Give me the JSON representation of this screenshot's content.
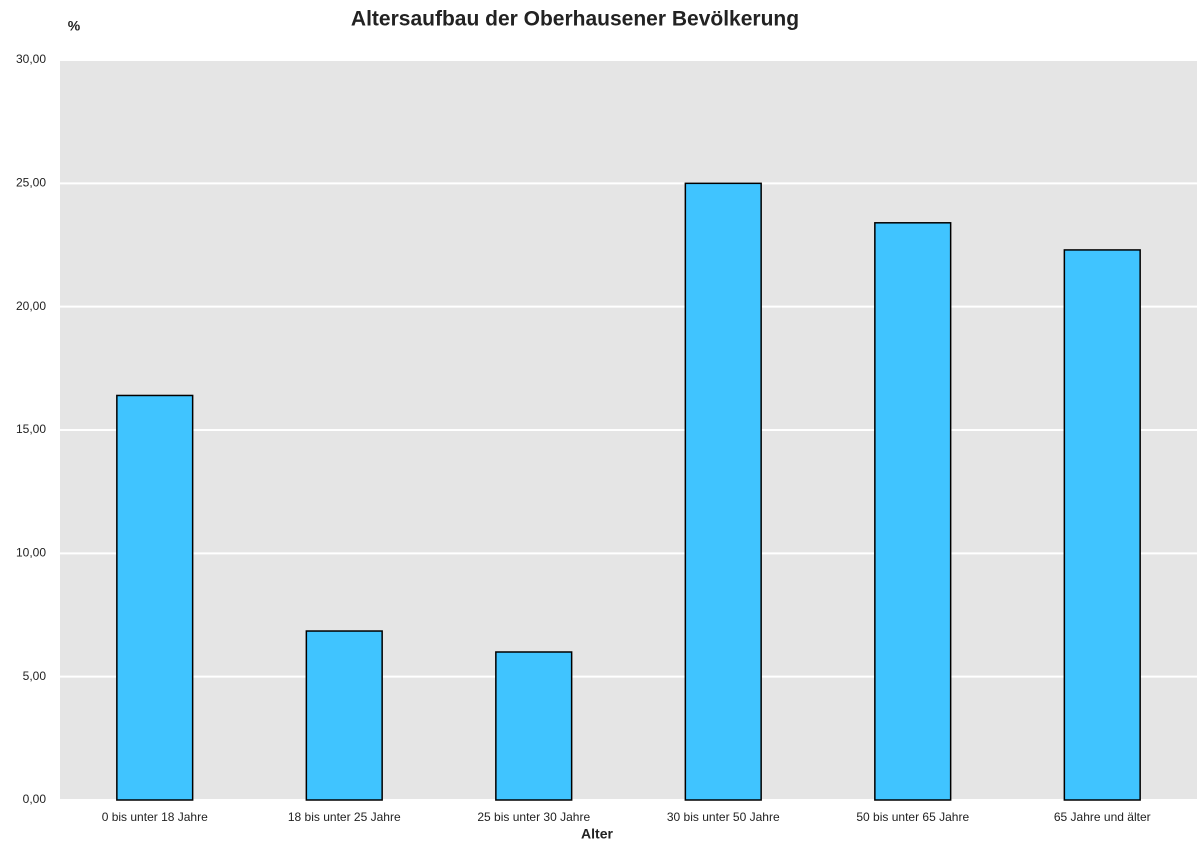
{
  "chart_data": {
    "type": "bar",
    "title": "Altersaufbau der Oberhausener Bevölkerung",
    "y_label": "%",
    "x_label": "Alter",
    "categories": [
      "0 bis unter 18 Jahre",
      "18 bis unter 25 Jahre",
      "25 bis unter 30 Jahre",
      "30 bis unter 50 Jahre",
      "50 bis unter 65 Jahre",
      "65 Jahre und älter"
    ],
    "values": [
      16.4,
      6.85,
      6.0,
      25.0,
      23.4,
      22.3
    ],
    "color": "#40c4ff",
    "ylim": [
      0,
      30
    ],
    "yticks": [
      {
        "value": 0,
        "label": "0,00"
      },
      {
        "value": 5,
        "label": "5,00"
      },
      {
        "value": 10,
        "label": "10,00"
      },
      {
        "value": 15,
        "label": "15,00"
      },
      {
        "value": 20,
        "label": "20,00"
      },
      {
        "value": 25,
        "label": "25,00"
      },
      {
        "value": 30,
        "label": "30,00"
      }
    ],
    "grid": true
  }
}
